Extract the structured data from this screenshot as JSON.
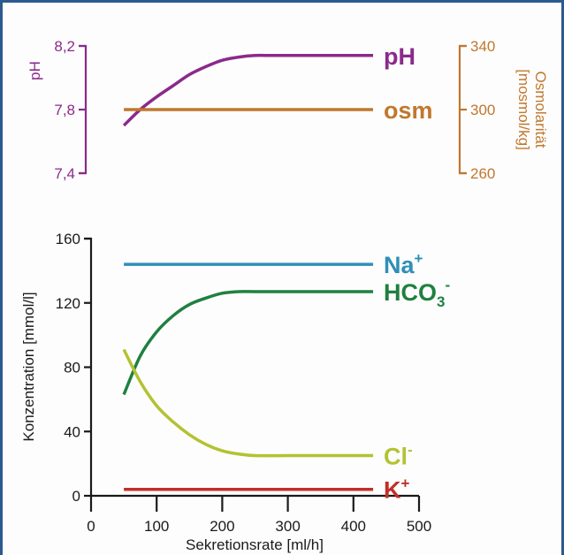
{
  "chart_data": [
    {
      "type": "line",
      "title": "",
      "left_axis": {
        "label": "pH",
        "color": "#8b2a8b",
        "ticks": [
          "8,2",
          "7,8",
          "7,4"
        ],
        "range": [
          7.4,
          8.2
        ]
      },
      "right_axis": {
        "label_line1": "Osmolarität",
        "label_line2": "[mosmol/kg]",
        "color": "#c0782e",
        "ticks": [
          "340",
          "300",
          "260"
        ],
        "range": [
          260,
          340
        ]
      },
      "x_shared_with_lower_chart": true,
      "series": [
        {
          "name": "pH",
          "axis": "left",
          "color": "#8b2a8b",
          "x": [
            50,
            75,
            100,
            125,
            150,
            175,
            200,
            225,
            250,
            275,
            300,
            350,
            400,
            430
          ],
          "y": [
            7.7,
            7.8,
            7.88,
            7.95,
            8.02,
            8.07,
            8.11,
            8.13,
            8.14,
            8.14,
            8.14,
            8.14,
            8.14,
            8.14
          ]
        },
        {
          "name": "osm",
          "axis": "right",
          "color": "#c0782e",
          "x": [
            50,
            430
          ],
          "y": [
            300,
            300
          ]
        }
      ]
    },
    {
      "type": "line",
      "title": "",
      "xlabel": "Sekretionsrate [ml/h]",
      "ylabel": "Konzentration [mmol/l]",
      "xlim": [
        0,
        500
      ],
      "ylim": [
        0,
        160
      ],
      "x_ticks": [
        "0",
        "100",
        "200",
        "300",
        "400",
        "500"
      ],
      "y_ticks": [
        "0",
        "40",
        "80",
        "120",
        "160"
      ],
      "series": [
        {
          "name": "Na",
          "superscript": "+",
          "color": "#2f8fb8",
          "x": [
            50,
            430
          ],
          "y": [
            144,
            144
          ]
        },
        {
          "name": "HCO",
          "subscript": "3",
          "superscript": "-",
          "color": "#1f8040",
          "x": [
            50,
            75,
            100,
            125,
            150,
            175,
            200,
            225,
            250,
            300,
            350,
            400,
            430
          ],
          "y": [
            63,
            87,
            102,
            112,
            119,
            123,
            126,
            127,
            127,
            127,
            127,
            127,
            127
          ]
        },
        {
          "name": "Cl",
          "superscript": "-",
          "color": "#b3c232",
          "x": [
            50,
            75,
            100,
            125,
            150,
            175,
            200,
            225,
            250,
            300,
            350,
            400,
            430
          ],
          "y": [
            91,
            71,
            56,
            46,
            38,
            32,
            28,
            26,
            25,
            25,
            25,
            25,
            25
          ]
        },
        {
          "name": "K",
          "superscript": "+",
          "color": "#c0302a",
          "x": [
            50,
            430
          ],
          "y": [
            4,
            4
          ]
        }
      ]
    }
  ]
}
